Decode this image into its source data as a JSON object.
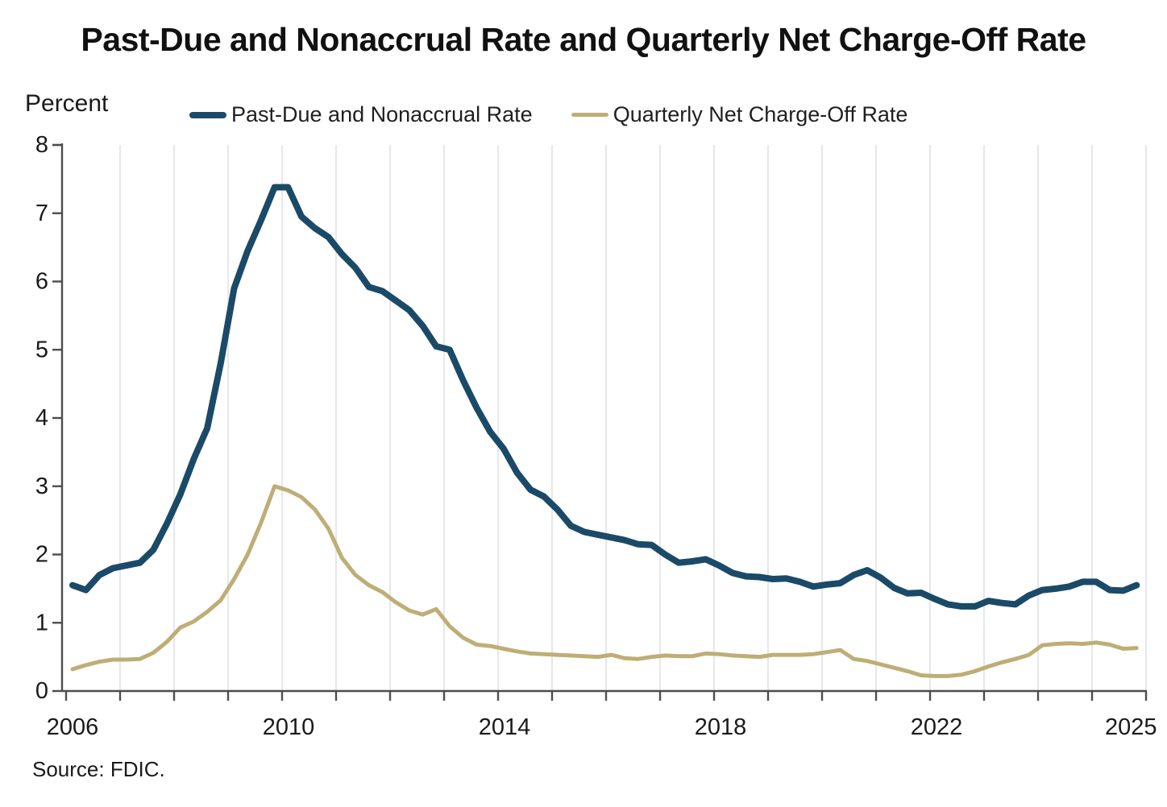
{
  "title": "Past-Due and Nonaccrual Rate and Quarterly Net Charge-Off Rate",
  "y_axis_label": "Percent",
  "source": "Source: FDIC.",
  "legend": [
    {
      "label": "Past-Due and Nonaccrual Rate",
      "color": "#1b4a68",
      "thickness": 8
    },
    {
      "label": "Quarterly Net Charge-Off Rate",
      "color": "#beae76",
      "thickness": 5
    }
  ],
  "colors": {
    "past_due_line": "#1b4a68",
    "charge_off_line": "#beae76",
    "gridline": "#e7e7e7",
    "axis": "#4d4d4d",
    "text": "#1a1a1a"
  },
  "chart_data": {
    "type": "line",
    "title": "Past-Due and Nonaccrual Rate and Quarterly Net Charge-Off Rate",
    "ylabel": "Percent",
    "xlabel": "",
    "ylim": [
      0,
      8
    ],
    "xlim": [
      2006,
      2026
    ],
    "y_ticks": [
      0,
      1,
      2,
      3,
      4,
      5,
      6,
      7,
      8
    ],
    "x_year_ticks_every": 1,
    "grid": "vertical-yearly",
    "legend_position": "top",
    "x_labels": [
      {
        "label": "2006",
        "at": 2006.12
      },
      {
        "label": "2010",
        "at": 2010.12
      },
      {
        "label": "2014",
        "at": 2014.12
      },
      {
        "label": "2018",
        "at": 2018.12
      },
      {
        "label": "2022",
        "at": 2022.12
      },
      {
        "label": "2025",
        "at": 2025.72
      }
    ],
    "x_start": 2006.0,
    "x_step": 0.25,
    "series": [
      {
        "name": "Past-Due and Nonaccrual Rate",
        "color": "#1b4a68",
        "width": 8,
        "values": [
          1.55,
          1.48,
          1.7,
          1.8,
          1.84,
          1.88,
          2.07,
          2.45,
          2.88,
          3.4,
          3.85,
          4.8,
          5.9,
          6.45,
          6.9,
          7.38,
          7.38,
          6.95,
          6.78,
          6.65,
          6.4,
          6.2,
          5.92,
          5.86,
          5.72,
          5.58,
          5.35,
          5.05,
          5.0,
          4.55,
          4.15,
          3.8,
          3.55,
          3.2,
          2.95,
          2.85,
          2.66,
          2.42,
          2.33,
          2.29,
          2.25,
          2.21,
          2.15,
          2.14,
          2.0,
          1.88,
          1.9,
          1.93,
          1.84,
          1.73,
          1.68,
          1.67,
          1.64,
          1.65,
          1.6,
          1.53,
          1.56,
          1.58,
          1.7,
          1.77,
          1.66,
          1.51,
          1.43,
          1.44,
          1.35,
          1.27,
          1.24,
          1.24,
          1.32,
          1.29,
          1.27,
          1.4,
          1.48,
          1.5,
          1.53,
          1.6,
          1.6,
          1.48,
          1.47,
          1.55
        ]
      },
      {
        "name": "Quarterly Net Charge-Off Rate",
        "color": "#beae76",
        "width": 5,
        "values": [
          0.32,
          0.38,
          0.43,
          0.46,
          0.46,
          0.47,
          0.56,
          0.72,
          0.93,
          1.02,
          1.16,
          1.33,
          1.64,
          2.0,
          2.47,
          3.0,
          2.94,
          2.84,
          2.66,
          2.38,
          1.95,
          1.7,
          1.55,
          1.45,
          1.3,
          1.18,
          1.12,
          1.2,
          0.95,
          0.78,
          0.68,
          0.66,
          0.62,
          0.58,
          0.55,
          0.54,
          0.53,
          0.52,
          0.51,
          0.5,
          0.53,
          0.48,
          0.47,
          0.5,
          0.52,
          0.51,
          0.51,
          0.55,
          0.54,
          0.52,
          0.51,
          0.5,
          0.53,
          0.53,
          0.53,
          0.54,
          0.57,
          0.6,
          0.47,
          0.44,
          0.39,
          0.34,
          0.29,
          0.23,
          0.22,
          0.22,
          0.24,
          0.29,
          0.36,
          0.42,
          0.47,
          0.53,
          0.67,
          0.69,
          0.7,
          0.69,
          0.71,
          0.68,
          0.62,
          0.63
        ]
      }
    ]
  }
}
